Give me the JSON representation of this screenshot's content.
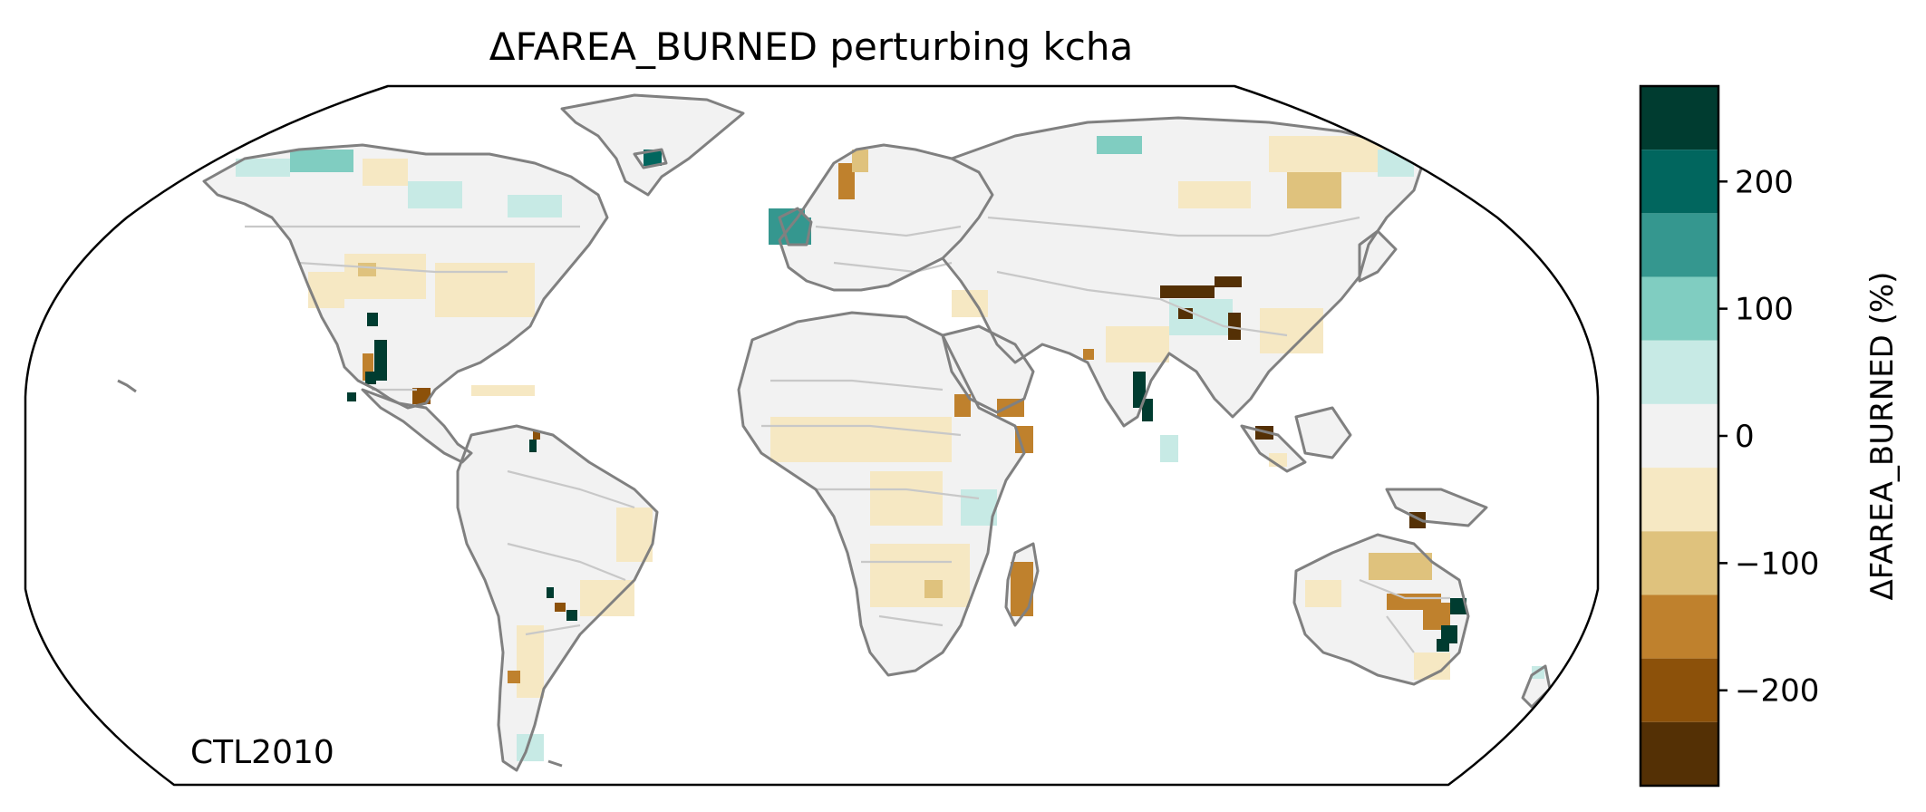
{
  "title": "ΔFAREA_BURNED perturbing kcha",
  "corner_label": "CTL2010",
  "colorbar": {
    "label": "ΔFAREA_BURNED (%)",
    "ticks": [
      {
        "value": 200,
        "label": "200"
      },
      {
        "value": 100,
        "label": "100"
      },
      {
        "value": 0,
        "label": "0"
      },
      {
        "value": -100,
        "label": "−100"
      },
      {
        "value": -200,
        "label": "−200"
      }
    ],
    "range": [
      -275,
      275
    ],
    "bins": [
      {
        "from": 225,
        "to": 275,
        "color": "#003c30"
      },
      {
        "from": 175,
        "to": 225,
        "color": "#01665e"
      },
      {
        "from": 125,
        "to": 175,
        "color": "#35978f"
      },
      {
        "from": 75,
        "to": 125,
        "color": "#80cdc1"
      },
      {
        "from": 25,
        "to": 75,
        "color": "#c7eae5"
      },
      {
        "from": -25,
        "to": 25,
        "color": "#f2f2f2"
      },
      {
        "from": -75,
        "to": -25,
        "color": "#f6e8c3"
      },
      {
        "from": -125,
        "to": -75,
        "color": "#dfc27d"
      },
      {
        "from": -175,
        "to": -125,
        "color": "#bf812d"
      },
      {
        "from": -225,
        "to": -175,
        "color": "#8c510a"
      },
      {
        "from": -275,
        "to": -225,
        "color": "#543005"
      }
    ]
  },
  "map": {
    "projection": "Robinson",
    "ocean_color": "#ffffff",
    "coastline_color": "#808080",
    "border_color": "#c8c8c8",
    "cells": [
      {
        "region": "Alaska / NW Canada",
        "value": 50
      },
      {
        "region": "Canadian Arctic coast",
        "value": 100
      },
      {
        "region": "Central Canada",
        "value": -50
      },
      {
        "region": "Hudson Bay south",
        "value": 50
      },
      {
        "region": "Eastern US",
        "value": -50
      },
      {
        "region": "Central US plains",
        "value": -100
      },
      {
        "region": "Mexico Sierra Madre east",
        "value": 250
      },
      {
        "region": "Mexico Sierra Madre west",
        "value": -200
      },
      {
        "region": "Central America",
        "value": -250
      },
      {
        "region": "Cuba",
        "value": -50
      },
      {
        "region": "Venezuela",
        "value": 250
      },
      {
        "region": "Brazil east",
        "value": -50
      },
      {
        "region": "Paraguay / Chaco",
        "value": 250
      },
      {
        "region": "Argentina",
        "value": -100
      },
      {
        "region": "Chile south",
        "value": 100
      },
      {
        "region": "Ireland / UK",
        "value": 150
      },
      {
        "region": "Scandinavia",
        "value": -150
      },
      {
        "region": "Siberia north",
        "value": 100
      },
      {
        "region": "Siberia central",
        "value": -100
      },
      {
        "region": "Tibet",
        "value": -250
      },
      {
        "region": "Tibet interior",
        "value": 50
      },
      {
        "region": "India west",
        "value": 250
      },
      {
        "region": "Sahel",
        "value": -50
      },
      {
        "region": "Ethiopia",
        "value": -150
      },
      {
        "region": "Southern Africa",
        "value": -50
      },
      {
        "region": "Madagascar",
        "value": -150
      },
      {
        "region": "Myanmar",
        "value": -250
      },
      {
        "region": "New Guinea",
        "value": -250
      },
      {
        "region": "Australia north",
        "value": -100
      },
      {
        "region": "Australia east",
        "value": -200
      },
      {
        "region": "Australia coast",
        "value": 250
      }
    ]
  }
}
